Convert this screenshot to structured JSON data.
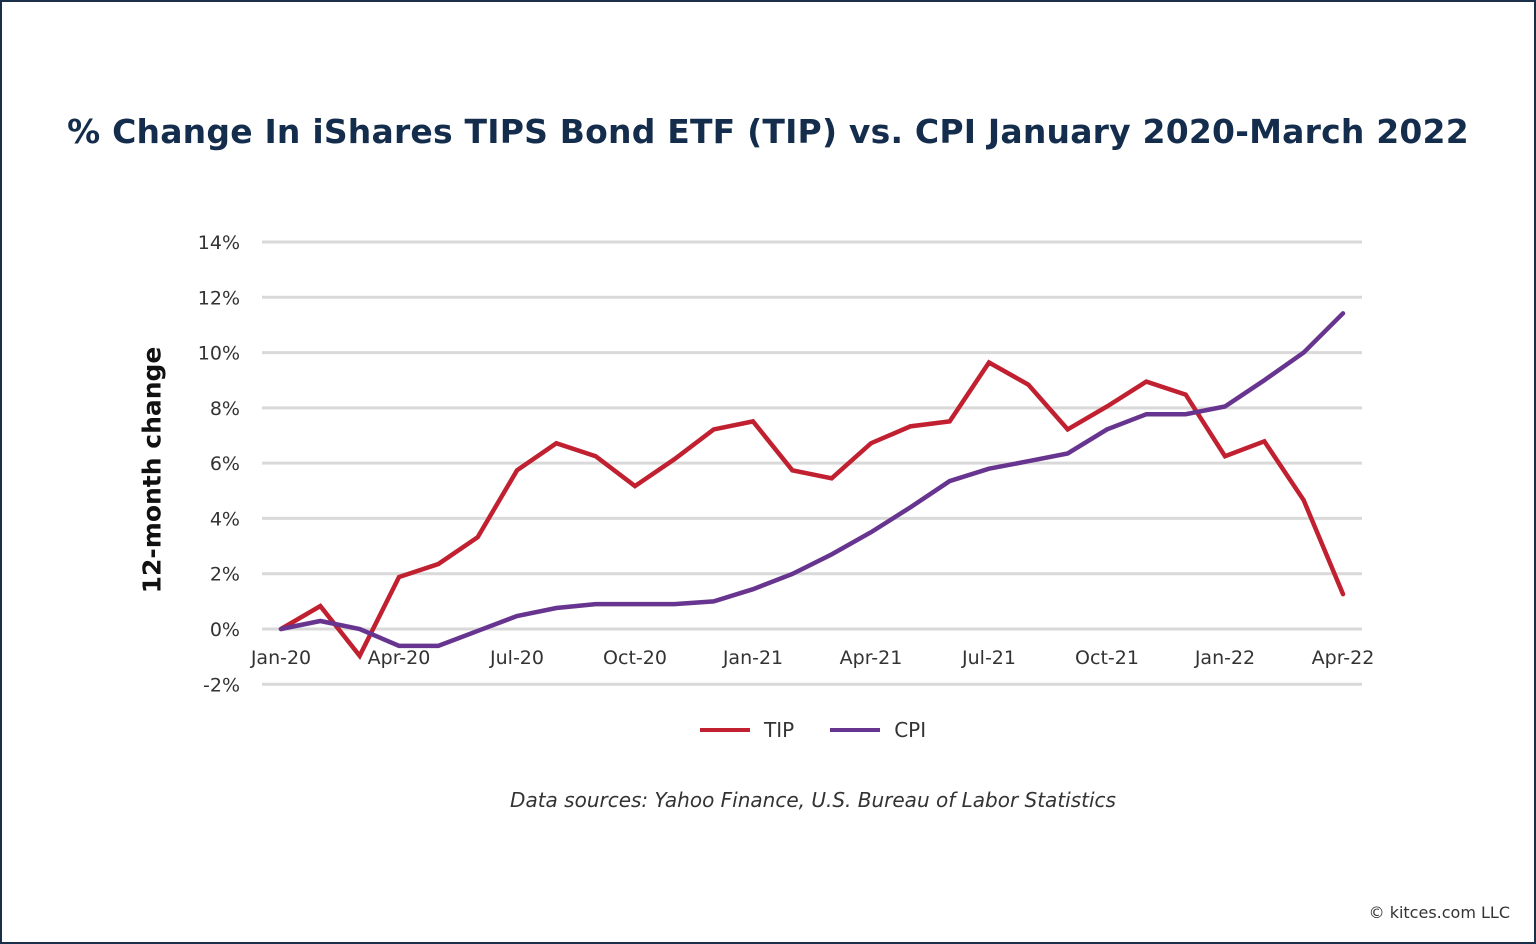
{
  "chart_data": {
    "type": "line",
    "title": "% Change In iShares TIPS Bond ETF (TIP) vs. CPI January 2020-March 2022",
    "ylabel": "12-month change",
    "xlabel": "",
    "x": [
      "Jan-20",
      "Feb-20",
      "Mar-20",
      "Apr-20",
      "May-20",
      "Jun-20",
      "Jul-20",
      "Aug-20",
      "Sep-20",
      "Oct-20",
      "Nov-20",
      "Dec-20",
      "Jan-21",
      "Feb-21",
      "Mar-21",
      "Apr-21",
      "May-21",
      "Jun-21",
      "Jul-21",
      "Aug-21",
      "Sep-21",
      "Oct-21",
      "Nov-21",
      "Dec-21",
      "Jan-22",
      "Feb-22",
      "Mar-22",
      "Apr-22"
    ],
    "x_tick_labels": [
      "Jan-20",
      "Apr-20",
      "Jul-20",
      "Oct-20",
      "Jan-21",
      "Apr-21",
      "Jul-21",
      "Oct-21",
      "Jan-22",
      "Apr-22"
    ],
    "y_tick_labels": [
      "-2%",
      "0%",
      "2%",
      "4%",
      "6%",
      "8%",
      "10%",
      "12%",
      "14%"
    ],
    "y_ticks": [
      -2,
      0,
      2,
      4,
      6,
      8,
      10,
      12,
      14
    ],
    "ylim": [
      -2,
      14
    ],
    "grid": "horizontal",
    "legend_position": "bottom",
    "series": [
      {
        "name": "TIP",
        "color": "#c0202f",
        "values": [
          0,
          0.83,
          -0.97,
          1.88,
          2.35,
          3.32,
          5.74,
          6.72,
          6.25,
          5.17,
          6.14,
          7.22,
          7.51,
          5.74,
          5.45,
          6.72,
          7.33,
          7.51,
          9.64,
          8.84,
          7.22,
          8.05,
          8.95,
          8.48,
          6.25,
          6.79,
          4.66,
          1.26
        ]
      },
      {
        "name": "CPI",
        "color": "#67358f",
        "values": [
          0,
          0.29,
          0,
          -0.61,
          -0.61,
          -0.07,
          0.47,
          0.76,
          0.9,
          0.9,
          0.9,
          1.0,
          1.44,
          1.99,
          2.7,
          3.5,
          4.4,
          5.35,
          5.8,
          6.07,
          6.35,
          7.22,
          7.77,
          7.77,
          8.05,
          9.0,
          10.0,
          11.42
        ]
      }
    ]
  },
  "source": "Data sources: Yahoo Finance, U.S. Bureau of Labor Statistics",
  "copyright": "© kitces.com LLC"
}
